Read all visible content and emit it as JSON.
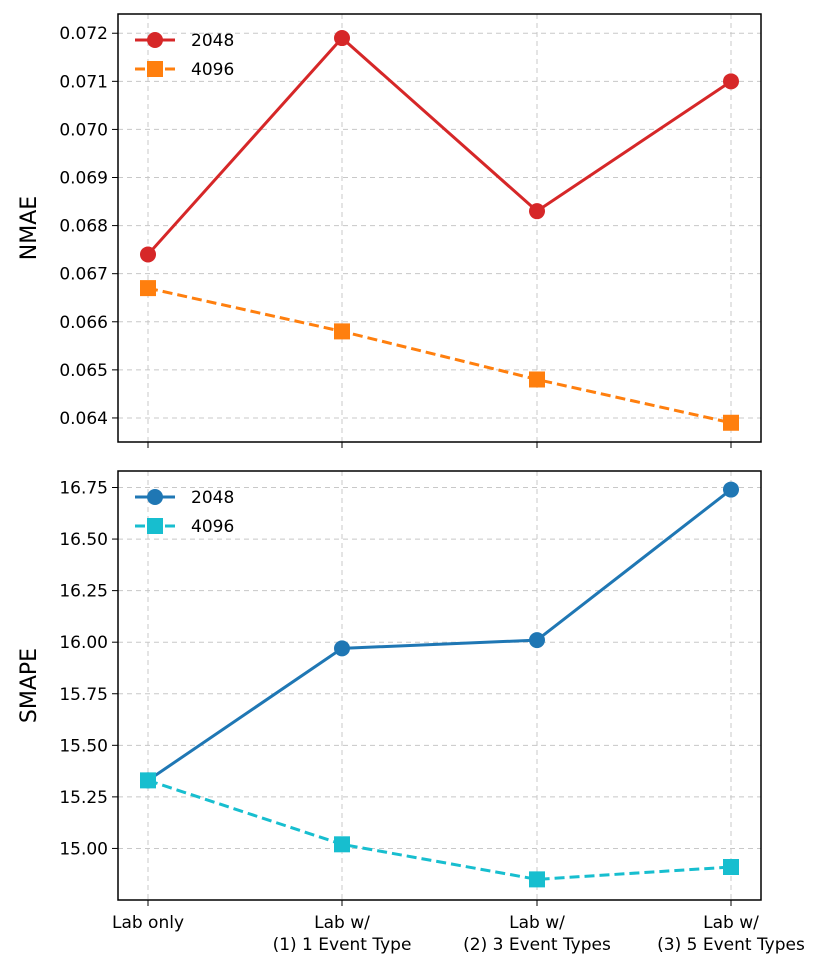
{
  "chart_data": [
    {
      "type": "line",
      "ylabel": "NMAE",
      "xlabel": "",
      "categories": [
        "Lab only",
        "Lab w/\n(1) 1 Event Type",
        "Lab w/\n(2) 3 Event Types",
        "Lab w/\n(3) 5 Event Types"
      ],
      "ylim": [
        0.0635,
        0.0724
      ],
      "yticks": [
        0.064,
        0.065,
        0.066,
        0.067,
        0.068,
        0.069,
        0.07,
        0.071,
        0.072
      ],
      "ytick_labels": [
        "0.064",
        "0.065",
        "0.066",
        "0.067",
        "0.068",
        "0.069",
        "0.070",
        "0.071",
        "0.072"
      ],
      "grid": true,
      "legend": "top-left",
      "series": [
        {
          "name": "2048",
          "values": [
            0.0674,
            0.0719,
            0.0683,
            0.071
          ],
          "color": "#d62728",
          "marker": "circle",
          "style": "solid"
        },
        {
          "name": "4096",
          "values": [
            0.0667,
            0.0658,
            0.0648,
            0.0639
          ],
          "color": "#ff7f0e",
          "marker": "square",
          "style": "dashed"
        }
      ]
    },
    {
      "type": "line",
      "ylabel": "SMAPE",
      "xlabel": "",
      "categories": [
        "Lab only",
        "Lab w/\n(1) 1 Event Type",
        "Lab w/\n(2) 3 Event Types",
        "Lab w/\n(3) 5 Event Types"
      ],
      "ylim": [
        14.75,
        16.83
      ],
      "yticks": [
        15.0,
        15.25,
        15.5,
        15.75,
        16.0,
        16.25,
        16.5,
        16.75
      ],
      "ytick_labels": [
        "15.00",
        "15.25",
        "15.50",
        "15.75",
        "16.00",
        "16.25",
        "16.50",
        "16.75"
      ],
      "grid": true,
      "legend": "top-left",
      "series": [
        {
          "name": "2048",
          "values": [
            15.33,
            15.97,
            16.01,
            16.74
          ],
          "color": "#1f77b4",
          "marker": "circle",
          "style": "solid"
        },
        {
          "name": "4096",
          "values": [
            15.33,
            15.02,
            14.85,
            14.91
          ],
          "color": "#17becf",
          "marker": "square",
          "style": "dashed"
        }
      ]
    }
  ]
}
